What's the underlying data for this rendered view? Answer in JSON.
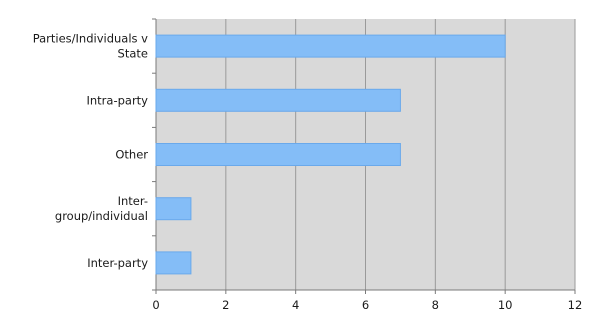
{
  "chart_data": {
    "type": "bar",
    "orientation": "horizontal",
    "title": "",
    "xlabel": "",
    "ylabel": "",
    "categories": [
      "Parties/Individuals v State",
      "Intra-party",
      "Other",
      "Inter-group/individual",
      "Inter-party"
    ],
    "category_lines": [
      [
        "Parties/Individuals v",
        "State"
      ],
      [
        "Intra-party"
      ],
      [
        "Other"
      ],
      [
        "Inter-",
        "group/individual"
      ],
      [
        "Inter-party"
      ]
    ],
    "values": [
      10,
      7,
      7,
      1,
      1
    ],
    "xlim": [
      0,
      12
    ],
    "xticks": [
      0,
      2,
      4,
      6,
      8,
      10,
      12
    ],
    "grid": true,
    "legend": "none",
    "colors": {
      "plot_background": "#d9d9d9",
      "bar_fill": "#84bdf7",
      "bar_stroke": "#6aa9eb",
      "grid": "#9a9a9a",
      "axis": "#7a7a7a",
      "text": "#1a1a1a"
    }
  }
}
